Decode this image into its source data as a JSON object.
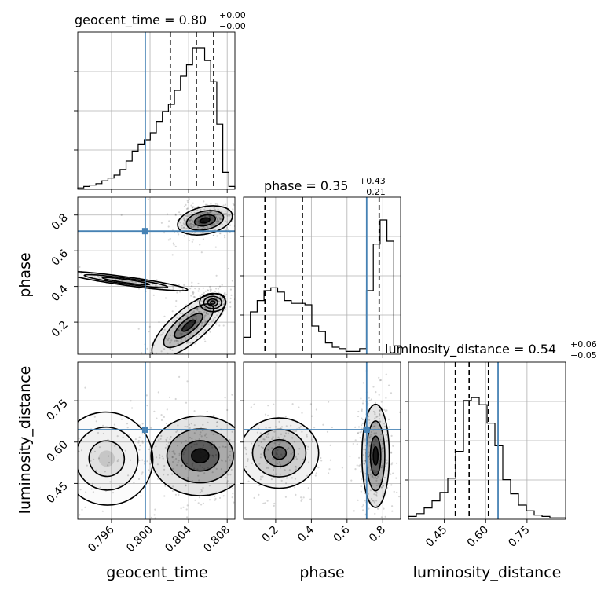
{
  "chart_data": {
    "type": "corner",
    "truth_color": "#4682b4",
    "parameters": [
      {
        "name": "geocent_time",
        "label": "geocent_time",
        "range": [
          0.7925,
          0.8088
        ],
        "ticks": [
          0.796,
          0.8,
          0.804,
          0.808
        ],
        "tick_labels": [
          "0.796",
          "0.800",
          "0.804",
          "0.808"
        ],
        "truth": 0.7995,
        "quantiles": [
          0.8021,
          0.8048,
          0.8066
        ],
        "title_value": "0.80",
        "title_plus": "+0.00",
        "title_minus": "−0.00",
        "hist": [
          0.01,
          0.02,
          0.03,
          0.04,
          0.06,
          0.08,
          0.1,
          0.14,
          0.2,
          0.27,
          0.32,
          0.35,
          0.4,
          0.48,
          0.55,
          0.6,
          0.7,
          0.8,
          0.88,
          1.0,
          1.0,
          0.91,
          0.76,
          0.46,
          0.12,
          0.02
        ]
      },
      {
        "name": "phase",
        "label": "phase",
        "range": [
          0.02,
          0.9
        ],
        "ticks": [
          0.2,
          0.4,
          0.6,
          0.8
        ],
        "tick_labels": [
          "0.2",
          "0.4",
          "0.6",
          "0.8"
        ],
        "truth": 0.71,
        "quantiles": [
          0.14,
          0.35,
          0.78
        ],
        "title_value": "0.35",
        "title_plus": "+0.43",
        "title_minus": "−0.21",
        "hist": [
          0.12,
          0.3,
          0.38,
          0.45,
          0.47,
          0.44,
          0.38,
          0.36,
          0.36,
          0.35,
          0.2,
          0.16,
          0.08,
          0.05,
          0.04,
          0.02,
          0.02,
          0.04,
          0.45,
          0.78,
          0.95,
          0.8,
          0.06
        ]
      },
      {
        "name": "luminosity_distance",
        "label": "luminosity_distance",
        "range": [
          0.32,
          0.89
        ],
        "ticks": [
          0.45,
          0.6,
          0.75
        ],
        "tick_labels": [
          "0.45",
          "0.60",
          "0.75"
        ],
        "truth": 0.645,
        "quantiles": [
          0.49,
          0.54,
          0.61
        ],
        "title_value": "0.54",
        "title_plus": "+0.06",
        "title_minus": "−0.05",
        "hist": [
          0.02,
          0.04,
          0.08,
          0.13,
          0.19,
          0.29,
          0.48,
          0.84,
          0.86,
          0.81,
          0.68,
          0.52,
          0.28,
          0.18,
          0.1,
          0.06,
          0.03,
          0.02,
          0.01,
          0.01
        ]
      }
    ],
    "pairs": [
      {
        "x": "geocent_time",
        "y": "phase",
        "blobs": [
          {
            "cx": 0.8057,
            "cy": 0.77,
            "rx": 0.0017,
            "ry": 0.045,
            "rot": -12,
            "w": 1.0
          },
          {
            "cx": 0.804,
            "cy": 0.18,
            "rx": 0.0028,
            "ry": 0.055,
            "rot": -40,
            "w": 0.8
          },
          {
            "cx": 0.8065,
            "cy": 0.31,
            "rx": 0.0008,
            "ry": 0.03,
            "rot": 0,
            "w": 0.35
          },
          {
            "cx": 0.7975,
            "cy": 0.43,
            "rx": 0.0038,
            "ry": 0.014,
            "rot": 8,
            "w": 0.22
          }
        ]
      },
      {
        "x": "geocent_time",
        "y": "luminosity_distance",
        "blobs": [
          {
            "cx": 0.8052,
            "cy": 0.55,
            "rx": 0.003,
            "ry": 0.085,
            "rot": 0,
            "w": 1.0
          },
          {
            "cx": 0.7955,
            "cy": 0.54,
            "rx": 0.0028,
            "ry": 0.1,
            "rot": -35,
            "w": 0.15
          }
        ]
      },
      {
        "x": "phase",
        "y": "luminosity_distance",
        "blobs": [
          {
            "cx": 0.22,
            "cy": 0.56,
            "rx": 0.13,
            "ry": 0.075,
            "rot": 0,
            "w": 0.55
          },
          {
            "cx": 0.76,
            "cy": 0.55,
            "rx": 0.045,
            "ry": 0.11,
            "rot": 0,
            "w": 1.0
          }
        ]
      }
    ]
  }
}
